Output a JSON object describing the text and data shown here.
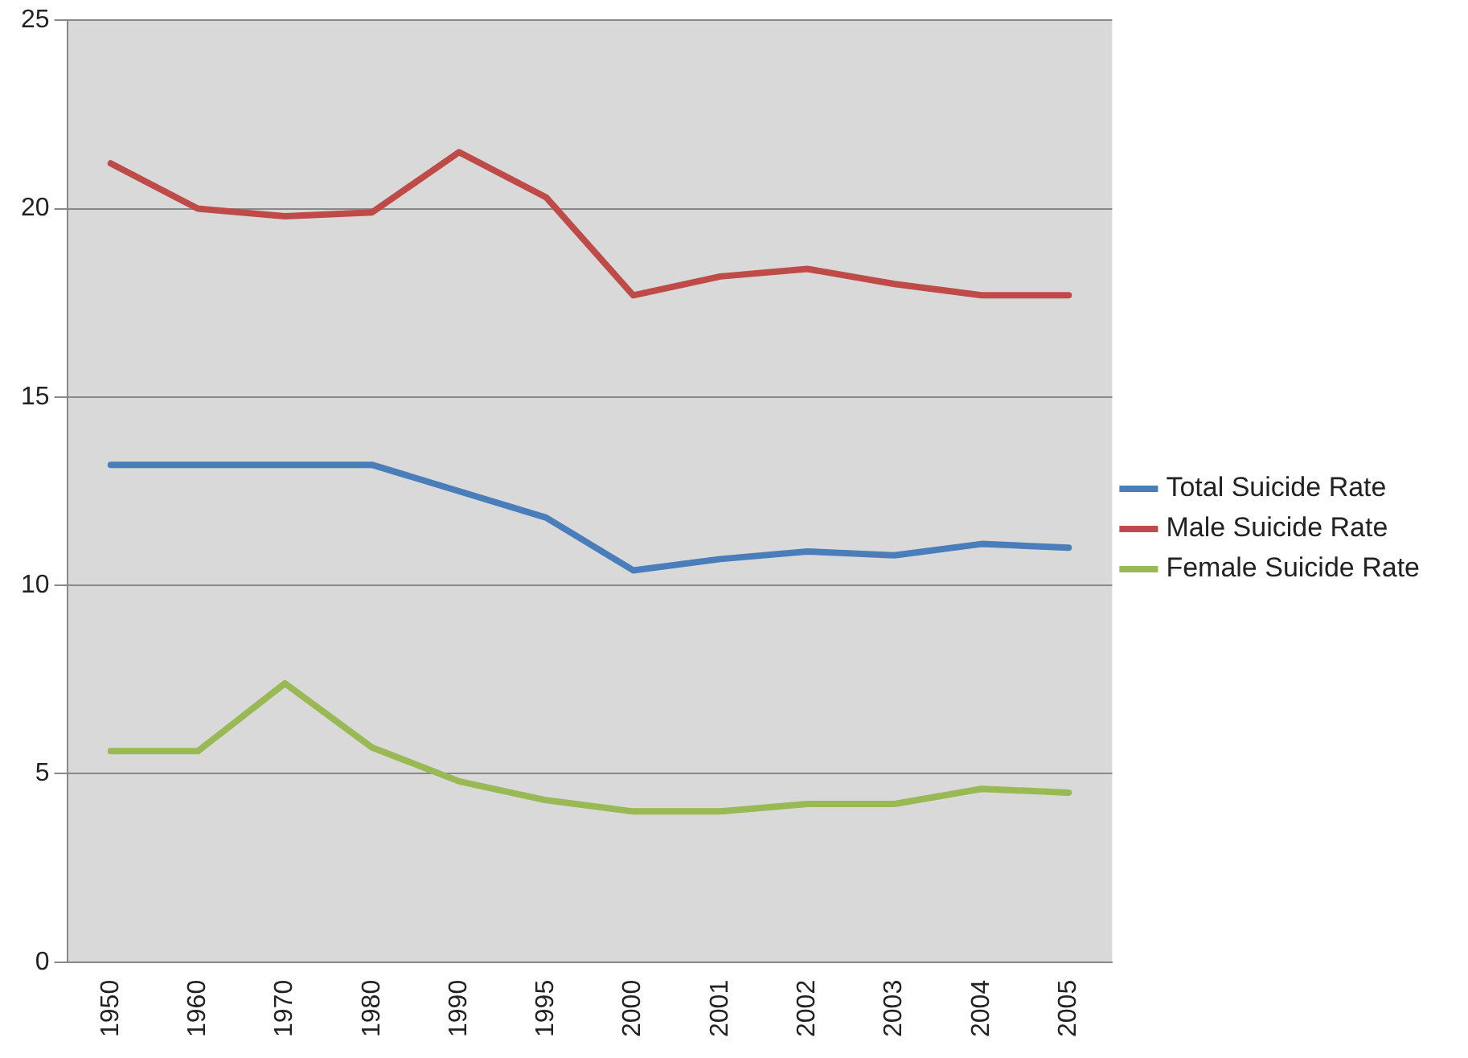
{
  "chart_data": {
    "type": "line",
    "categories": [
      "1950",
      "1960",
      "1970",
      "1980",
      "1990",
      "1995",
      "2000",
      "2001",
      "2002",
      "2003",
      "2004",
      "2005"
    ],
    "series": [
      {
        "name": "Total Suicide Rate",
        "color": "#4a7ebb",
        "values": [
          13.2,
          13.2,
          13.2,
          13.2,
          12.5,
          11.8,
          10.4,
          10.7,
          10.9,
          10.8,
          11.1,
          11.0
        ]
      },
      {
        "name": "Male Suicide Rate",
        "color": "#be4b48",
        "values": [
          21.2,
          20.0,
          19.8,
          19.9,
          21.5,
          20.3,
          17.7,
          18.2,
          18.4,
          18.0,
          17.7,
          17.7
        ]
      },
      {
        "name": "Female Suicide Rate",
        "color": "#98b954",
        "values": [
          5.6,
          5.6,
          7.4,
          5.7,
          4.8,
          4.3,
          4.0,
          4.0,
          4.2,
          4.2,
          4.6,
          4.5
        ]
      }
    ],
    "ylim": [
      0,
      25
    ],
    "yticks": [
      0,
      5,
      10,
      15,
      20,
      25
    ],
    "grid": "y",
    "legend": "right",
    "marker": "none",
    "line_style": "solid"
  }
}
